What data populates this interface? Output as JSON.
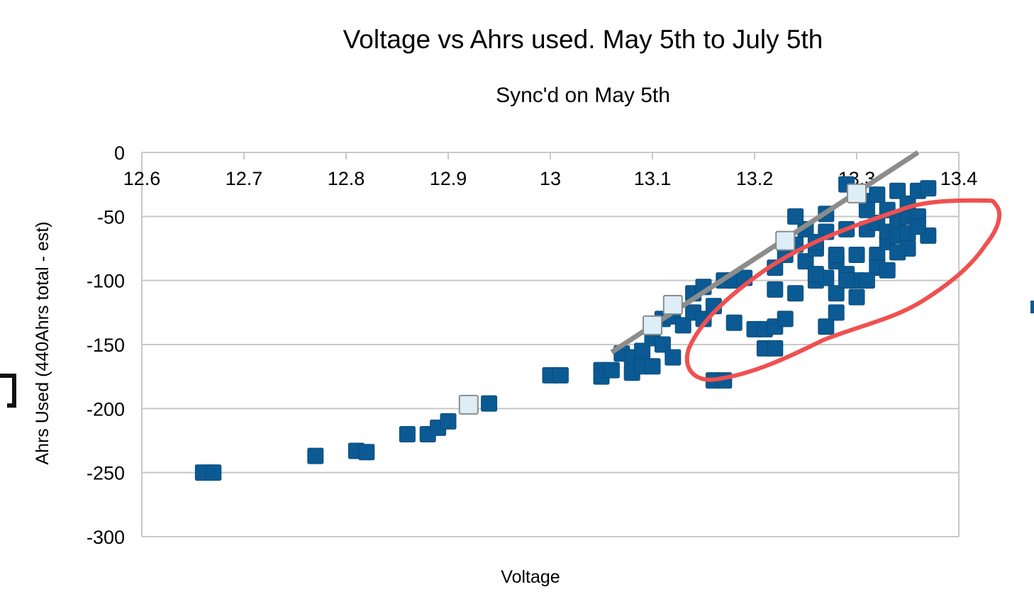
{
  "chart_data": {
    "type": "scatter",
    "title": "Voltage vs Ahrs used. May 5th to July 5th",
    "subtitle": "Sync'd on May 5th",
    "xlabel": "Voltage",
    "ylabel": "Ahrs Used (440Ahrs total - est)",
    "xlim": [
      12.6,
      13.4
    ],
    "ylim": [
      -300,
      0
    ],
    "x_ticks": [
      "12.6",
      "12.7",
      "12.8",
      "12.9",
      "13",
      "13.1",
      "13.2",
      "13.3",
      "13.4"
    ],
    "y_ticks": [
      "0",
      "-50",
      "-100",
      "-150",
      "-200",
      "-250",
      "-300"
    ],
    "x_axis_position": "top",
    "grid": true,
    "colors": {
      "primary_series": "#0b5a93",
      "highlight_series": "#deeef7",
      "highlight_border": "#8c8c8c",
      "trendline": "#8c8c8c",
      "annotation": "#f05050",
      "grid": "#c8c8c8"
    },
    "series": [
      {
        "points": [
          [
            12.66,
            -250
          ],
          [
            12.67,
            -250
          ],
          [
            12.77,
            -237
          ],
          [
            12.81,
            -233
          ],
          [
            12.82,
            -234
          ],
          [
            12.86,
            -220
          ],
          [
            12.88,
            -220
          ],
          [
            12.89,
            -215
          ],
          [
            12.9,
            -210
          ],
          [
            12.92,
            -197
          ],
          [
            12.94,
            -196
          ],
          [
            13.0,
            -174
          ],
          [
            13.01,
            -174
          ],
          [
            13.05,
            -170
          ],
          [
            13.05,
            -175
          ],
          [
            13.06,
            -170
          ],
          [
            13.07,
            -157
          ],
          [
            13.08,
            -160
          ],
          [
            13.08,
            -172
          ],
          [
            13.09,
            -155
          ],
          [
            13.09,
            -167
          ],
          [
            13.1,
            -145
          ],
          [
            13.1,
            -167
          ],
          [
            13.11,
            -130
          ],
          [
            13.11,
            -150
          ],
          [
            13.12,
            -160
          ],
          [
            13.12,
            -128
          ],
          [
            13.13,
            -135
          ],
          [
            13.14,
            -125
          ],
          [
            13.14,
            -110
          ],
          [
            13.15,
            -130
          ],
          [
            13.15,
            -105
          ],
          [
            13.16,
            -120
          ],
          [
            13.16,
            -178
          ],
          [
            13.17,
            -178
          ],
          [
            13.17,
            -100
          ],
          [
            13.18,
            -100
          ],
          [
            13.19,
            -98
          ],
          [
            13.18,
            -133
          ],
          [
            13.2,
            -138
          ],
          [
            13.21,
            -138
          ],
          [
            13.22,
            -136
          ],
          [
            13.21,
            -153
          ],
          [
            13.22,
            -153
          ],
          [
            13.22,
            -107
          ],
          [
            13.22,
            -90
          ],
          [
            13.23,
            -80
          ],
          [
            13.23,
            -130
          ],
          [
            13.24,
            -110
          ],
          [
            13.24,
            -72
          ],
          [
            13.25,
            -60
          ],
          [
            13.24,
            -50
          ],
          [
            13.25,
            -85
          ],
          [
            13.26,
            -75
          ],
          [
            13.27,
            -48
          ],
          [
            13.26,
            -100
          ],
          [
            13.27,
            -98
          ],
          [
            13.28,
            -110
          ],
          [
            13.28,
            -85
          ],
          [
            13.29,
            -60
          ],
          [
            13.29,
            -95
          ],
          [
            13.27,
            -136
          ],
          [
            13.28,
            -125
          ],
          [
            13.26,
            -95
          ],
          [
            13.3,
            -80
          ],
          [
            13.31,
            -60
          ],
          [
            13.32,
            -80
          ],
          [
            13.32,
            -55
          ],
          [
            13.33,
            -70
          ],
          [
            13.33,
            -62
          ],
          [
            13.34,
            -65
          ],
          [
            13.34,
            -53
          ],
          [
            13.33,
            -45
          ],
          [
            13.34,
            -30
          ],
          [
            13.31,
            -38
          ],
          [
            13.32,
            -33
          ],
          [
            13.35,
            -50
          ],
          [
            13.35,
            -40
          ],
          [
            13.35,
            -63
          ],
          [
            13.3,
            -100
          ],
          [
            13.32,
            -90
          ],
          [
            13.31,
            -45
          ],
          [
            13.29,
            -25
          ],
          [
            13.36,
            -30
          ],
          [
            13.36,
            -50
          ],
          [
            13.37,
            -65
          ],
          [
            13.37,
            -28
          ],
          [
            13.36,
            -58
          ],
          [
            13.35,
            -75
          ],
          [
            13.34,
            -78
          ],
          [
            13.33,
            -92
          ],
          [
            13.31,
            -100
          ],
          [
            13.3,
            -113
          ],
          [
            13.29,
            -100
          ],
          [
            13.28,
            -80
          ],
          [
            13.27,
            -62
          ],
          [
            13.26,
            -70
          ]
        ]
      },
      {
        "points": [
          [
            12.92,
            -197
          ],
          [
            13.1,
            -135
          ],
          [
            13.12,
            -119
          ],
          [
            13.23,
            -69
          ],
          [
            13.3,
            -32
          ]
        ]
      }
    ],
    "trendline": [
      [
        13.06,
        -156
      ],
      [
        13.36,
        0
      ]
    ]
  }
}
